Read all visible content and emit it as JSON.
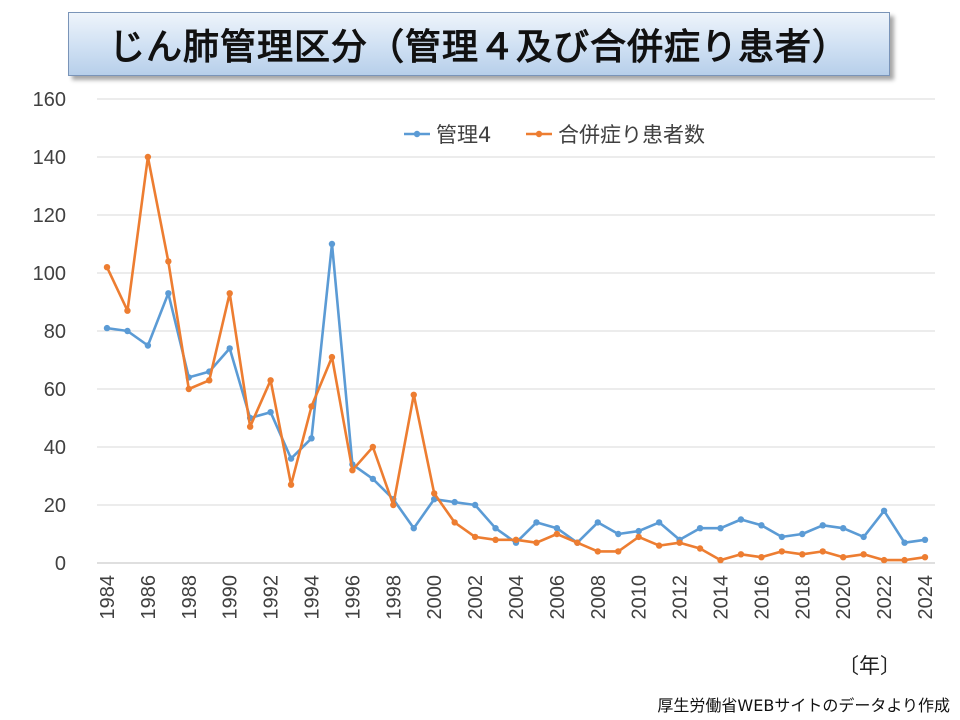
{
  "title": "じん肺管理区分（管理４及び合併症り患者）",
  "x_unit": "〔年〕",
  "source": "厚生労働省WEBサイトのデータより作成",
  "chart_data": {
    "type": "line",
    "title": "じん肺管理区分（管理４及び合併症り患者）",
    "xlabel": "〔年〕",
    "ylabel": "",
    "ylim": [
      0,
      160
    ],
    "yticks": [
      0,
      20,
      40,
      60,
      80,
      100,
      120,
      140,
      160
    ],
    "xticks": [
      1984,
      1986,
      1988,
      1990,
      1992,
      1994,
      1996,
      1998,
      2000,
      2002,
      2004,
      2006,
      2008,
      2010,
      2012,
      2014,
      2016,
      2018,
      2020,
      2022,
      2024
    ],
    "grid": true,
    "legend_position": "top-right",
    "x": [
      1984,
      1985,
      1986,
      1987,
      1988,
      1989,
      1990,
      1991,
      1992,
      1993,
      1994,
      1995,
      1996,
      1997,
      1998,
      1999,
      2000,
      2001,
      2002,
      2003,
      2004,
      2005,
      2006,
      2007,
      2008,
      2009,
      2010,
      2011,
      2012,
      2013,
      2014,
      2015,
      2016,
      2017,
      2018,
      2019,
      2020,
      2021,
      2022,
      2023,
      2024
    ],
    "series": [
      {
        "name": "管理4",
        "color": "#5b9bd5",
        "values": [
          81,
          80,
          75,
          93,
          64,
          66,
          74,
          50,
          52,
          36,
          43,
          110,
          34,
          29,
          22,
          12,
          22,
          21,
          20,
          12,
          7,
          14,
          12,
          7,
          14,
          10,
          11,
          14,
          8,
          12,
          12,
          15,
          13,
          9,
          10,
          13,
          12,
          9,
          18,
          7,
          8
        ]
      },
      {
        "name": "合併症り患者数",
        "color": "#ed7d31",
        "values": [
          102,
          87,
          140,
          104,
          60,
          63,
          93,
          47,
          63,
          27,
          54,
          71,
          32,
          40,
          20,
          58,
          24,
          14,
          9,
          8,
          8,
          7,
          10,
          7,
          4,
          4,
          9,
          6,
          7,
          5,
          1,
          3,
          2,
          4,
          3,
          4,
          2,
          3,
          1,
          1,
          2
        ]
      }
    ]
  }
}
